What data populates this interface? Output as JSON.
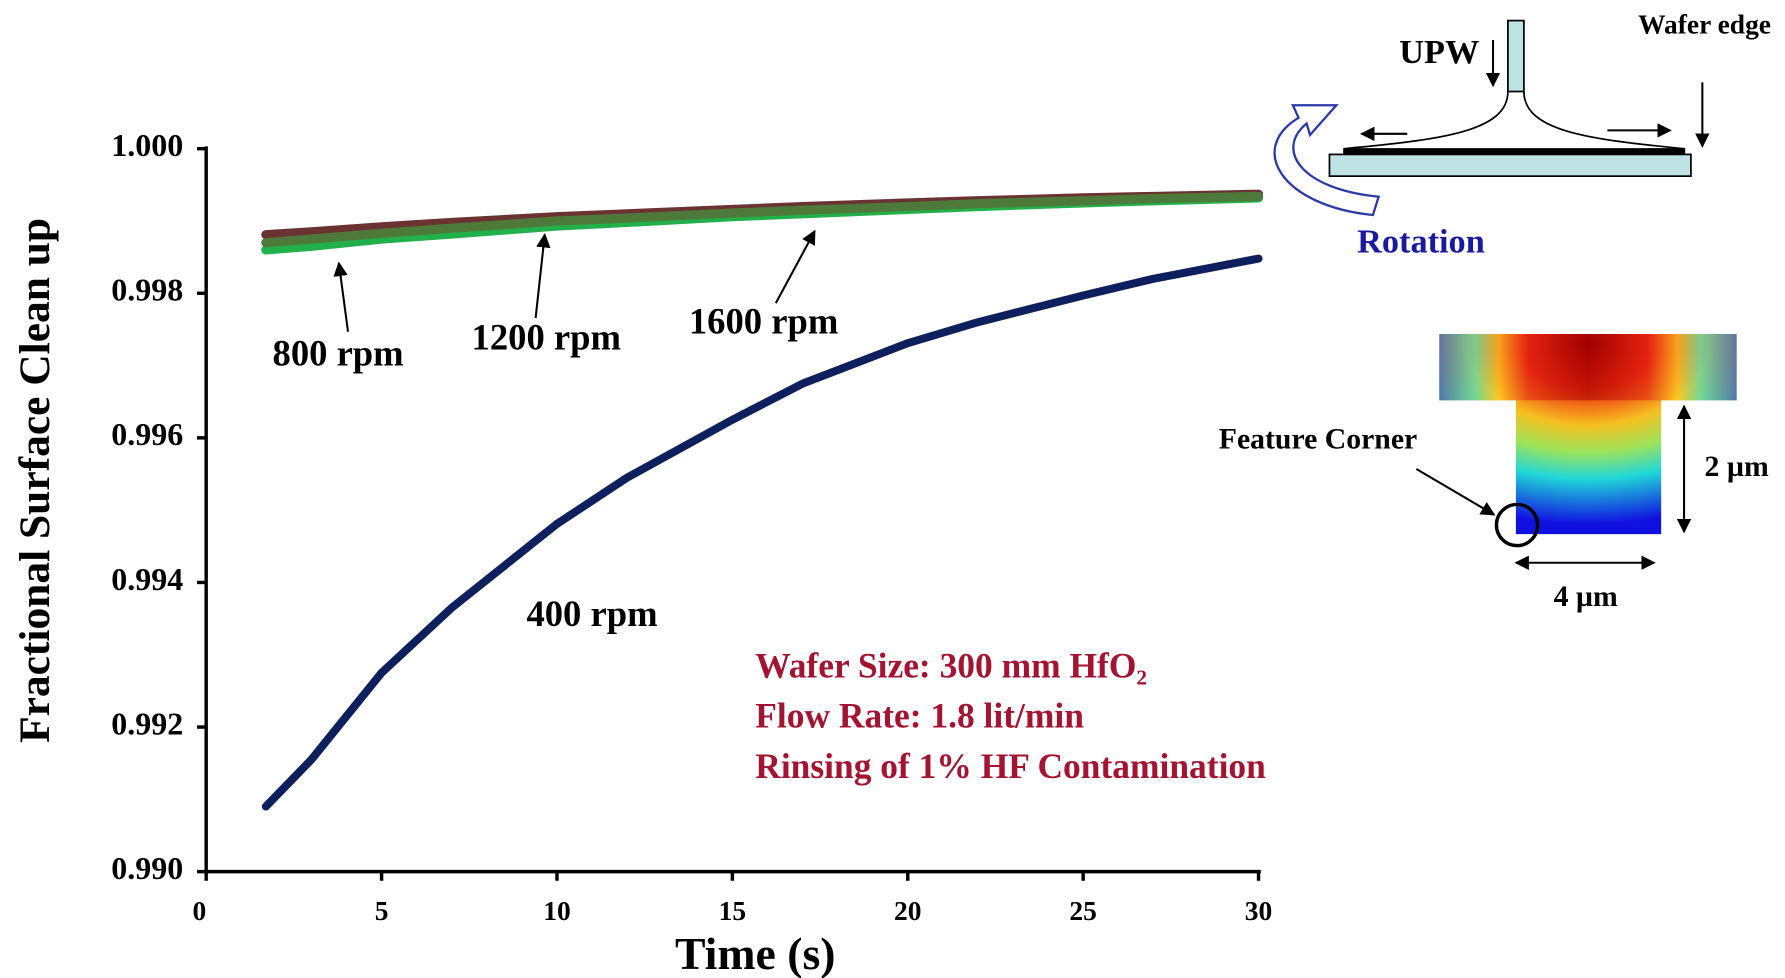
{
  "chart_data": {
    "type": "line",
    "x_label": "Time (s)",
    "y_label": "Fractional  Surface Clean up",
    "x": [
      1.7,
      3,
      5,
      7,
      10,
      12,
      15,
      17,
      20,
      22,
      25,
      27,
      30
    ],
    "series": [
      {
        "name": "400 rpm",
        "color": "#0d1f5c",
        "values": [
          0.9909,
          0.99155,
          0.99275,
          0.99365,
          0.99481,
          0.99545,
          0.99625,
          0.99675,
          0.99731,
          0.9976,
          0.99797,
          0.9982,
          0.99848
        ]
      },
      {
        "name": "800 rpm",
        "color": "#6b3232",
        "values": [
          0.99881,
          0.99885,
          0.99892,
          0.99898,
          0.99906,
          0.9991,
          0.99916,
          0.9992,
          0.99925,
          0.99928,
          0.99932,
          0.99934,
          0.99937
        ]
      },
      {
        "name": "1200 rpm",
        "color": "#22b04a",
        "values": [
          0.9986,
          0.99865,
          0.99875,
          0.99882,
          0.99893,
          0.99898,
          0.99906,
          0.9991,
          0.99916,
          0.9992,
          0.99925,
          0.99928,
          0.99932
        ]
      },
      {
        "name": "1600 rpm",
        "color": "#4d7a3a",
        "values": [
          0.9987,
          0.99875,
          0.99883,
          0.9989,
          0.999,
          0.99904,
          0.99911,
          0.99915,
          0.9992,
          0.99924,
          0.99928,
          0.99931,
          0.99934
        ]
      }
    ],
    "xlim": [
      0,
      30
    ],
    "ylim": [
      0.99,
      1.0
    ],
    "xticks": [
      0,
      5,
      10,
      15,
      20,
      25,
      30
    ],
    "yticks": [
      {
        "value": 0.99,
        "label": "0.990"
      },
      0.992,
      0.994,
      0.996,
      0.998,
      {
        "value": 1.0,
        "label": "1.000"
      }
    ],
    "annotations": [
      "Wafer Size: 300 mm HfO₂",
      "Flow Rate: 1.8 lit/min",
      "Rinsing of 1% HF Contamination"
    ]
  },
  "insets": {
    "spin_diagram": {
      "nozzle": "UPW",
      "edge": "Wafer edge",
      "rotation": "Rotation"
    },
    "feature": {
      "corner": "Feature Corner",
      "depth": "2 µm",
      "width": "4 µm"
    }
  }
}
